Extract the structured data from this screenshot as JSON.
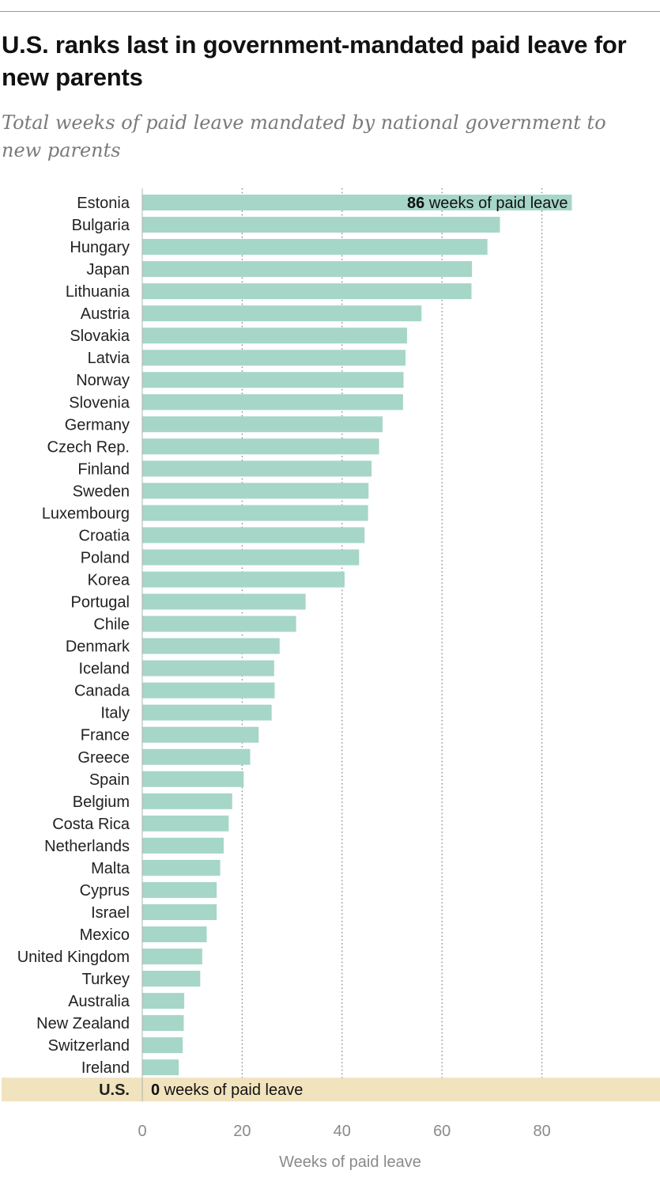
{
  "title": "U.S. ranks last in government-mandated paid leave for new parents",
  "subtitle": "Total weeks of paid leave mandated by national government to new parents",
  "chart_data": {
    "type": "bar",
    "orientation": "horizontal",
    "title": "U.S. ranks last in government-mandated paid leave for new parents",
    "subtitle": "Total weeks of paid leave mandated by national government to new parents",
    "xlabel": "Weeks of paid leave",
    "ylabel": "",
    "xlim": [
      0,
      100
    ],
    "xticks": [
      0,
      20,
      40,
      60,
      80
    ],
    "grid": "vertical dotted",
    "categories": [
      "Estonia",
      "Bulgaria",
      "Hungary",
      "Japan",
      "Lithuania",
      "Austria",
      "Slovakia",
      "Latvia",
      "Norway",
      "Slovenia",
      "Germany",
      "Czech Rep.",
      "Finland",
      "Sweden",
      "Luxembourg",
      "Croatia",
      "Poland",
      "Korea",
      "Portugal",
      "Chile",
      "Denmark",
      "Iceland",
      "Canada",
      "Italy",
      "France",
      "Greece",
      "Spain",
      "Belgium",
      "Costa Rica",
      "Netherlands",
      "Malta",
      "Cyprus",
      "Israel",
      "Mexico",
      "United Kingdom",
      "Turkey",
      "Australia",
      "New Zealand",
      "Switzerland",
      "Ireland",
      "U.S."
    ],
    "values": [
      86.0,
      71.6,
      69.1,
      66.0,
      65.9,
      55.9,
      53.0,
      52.7,
      52.3,
      52.2,
      48.1,
      47.4,
      45.9,
      45.3,
      45.2,
      44.5,
      43.4,
      40.5,
      32.7,
      30.8,
      27.5,
      26.4,
      26.5,
      25.9,
      23.3,
      21.6,
      20.3,
      18.0,
      17.3,
      16.3,
      15.6,
      14.9,
      14.9,
      12.9,
      12.0,
      11.6,
      8.4,
      8.3,
      8.1,
      7.3,
      0
    ],
    "annotations": {
      "top": {
        "value": "86",
        "text": " weeks of paid leave",
        "category": "Estonia"
      },
      "us": {
        "value": "0",
        "text": " weeks of paid leave",
        "category": "U.S."
      }
    },
    "colors": {
      "bar": "#a6d6c8",
      "highlight_band": "#f1e3bd",
      "grid": "#7a7a7a",
      "axis": "#b0b0b0",
      "tick_text": "#8a8a8a",
      "label_text": "#222222"
    }
  }
}
